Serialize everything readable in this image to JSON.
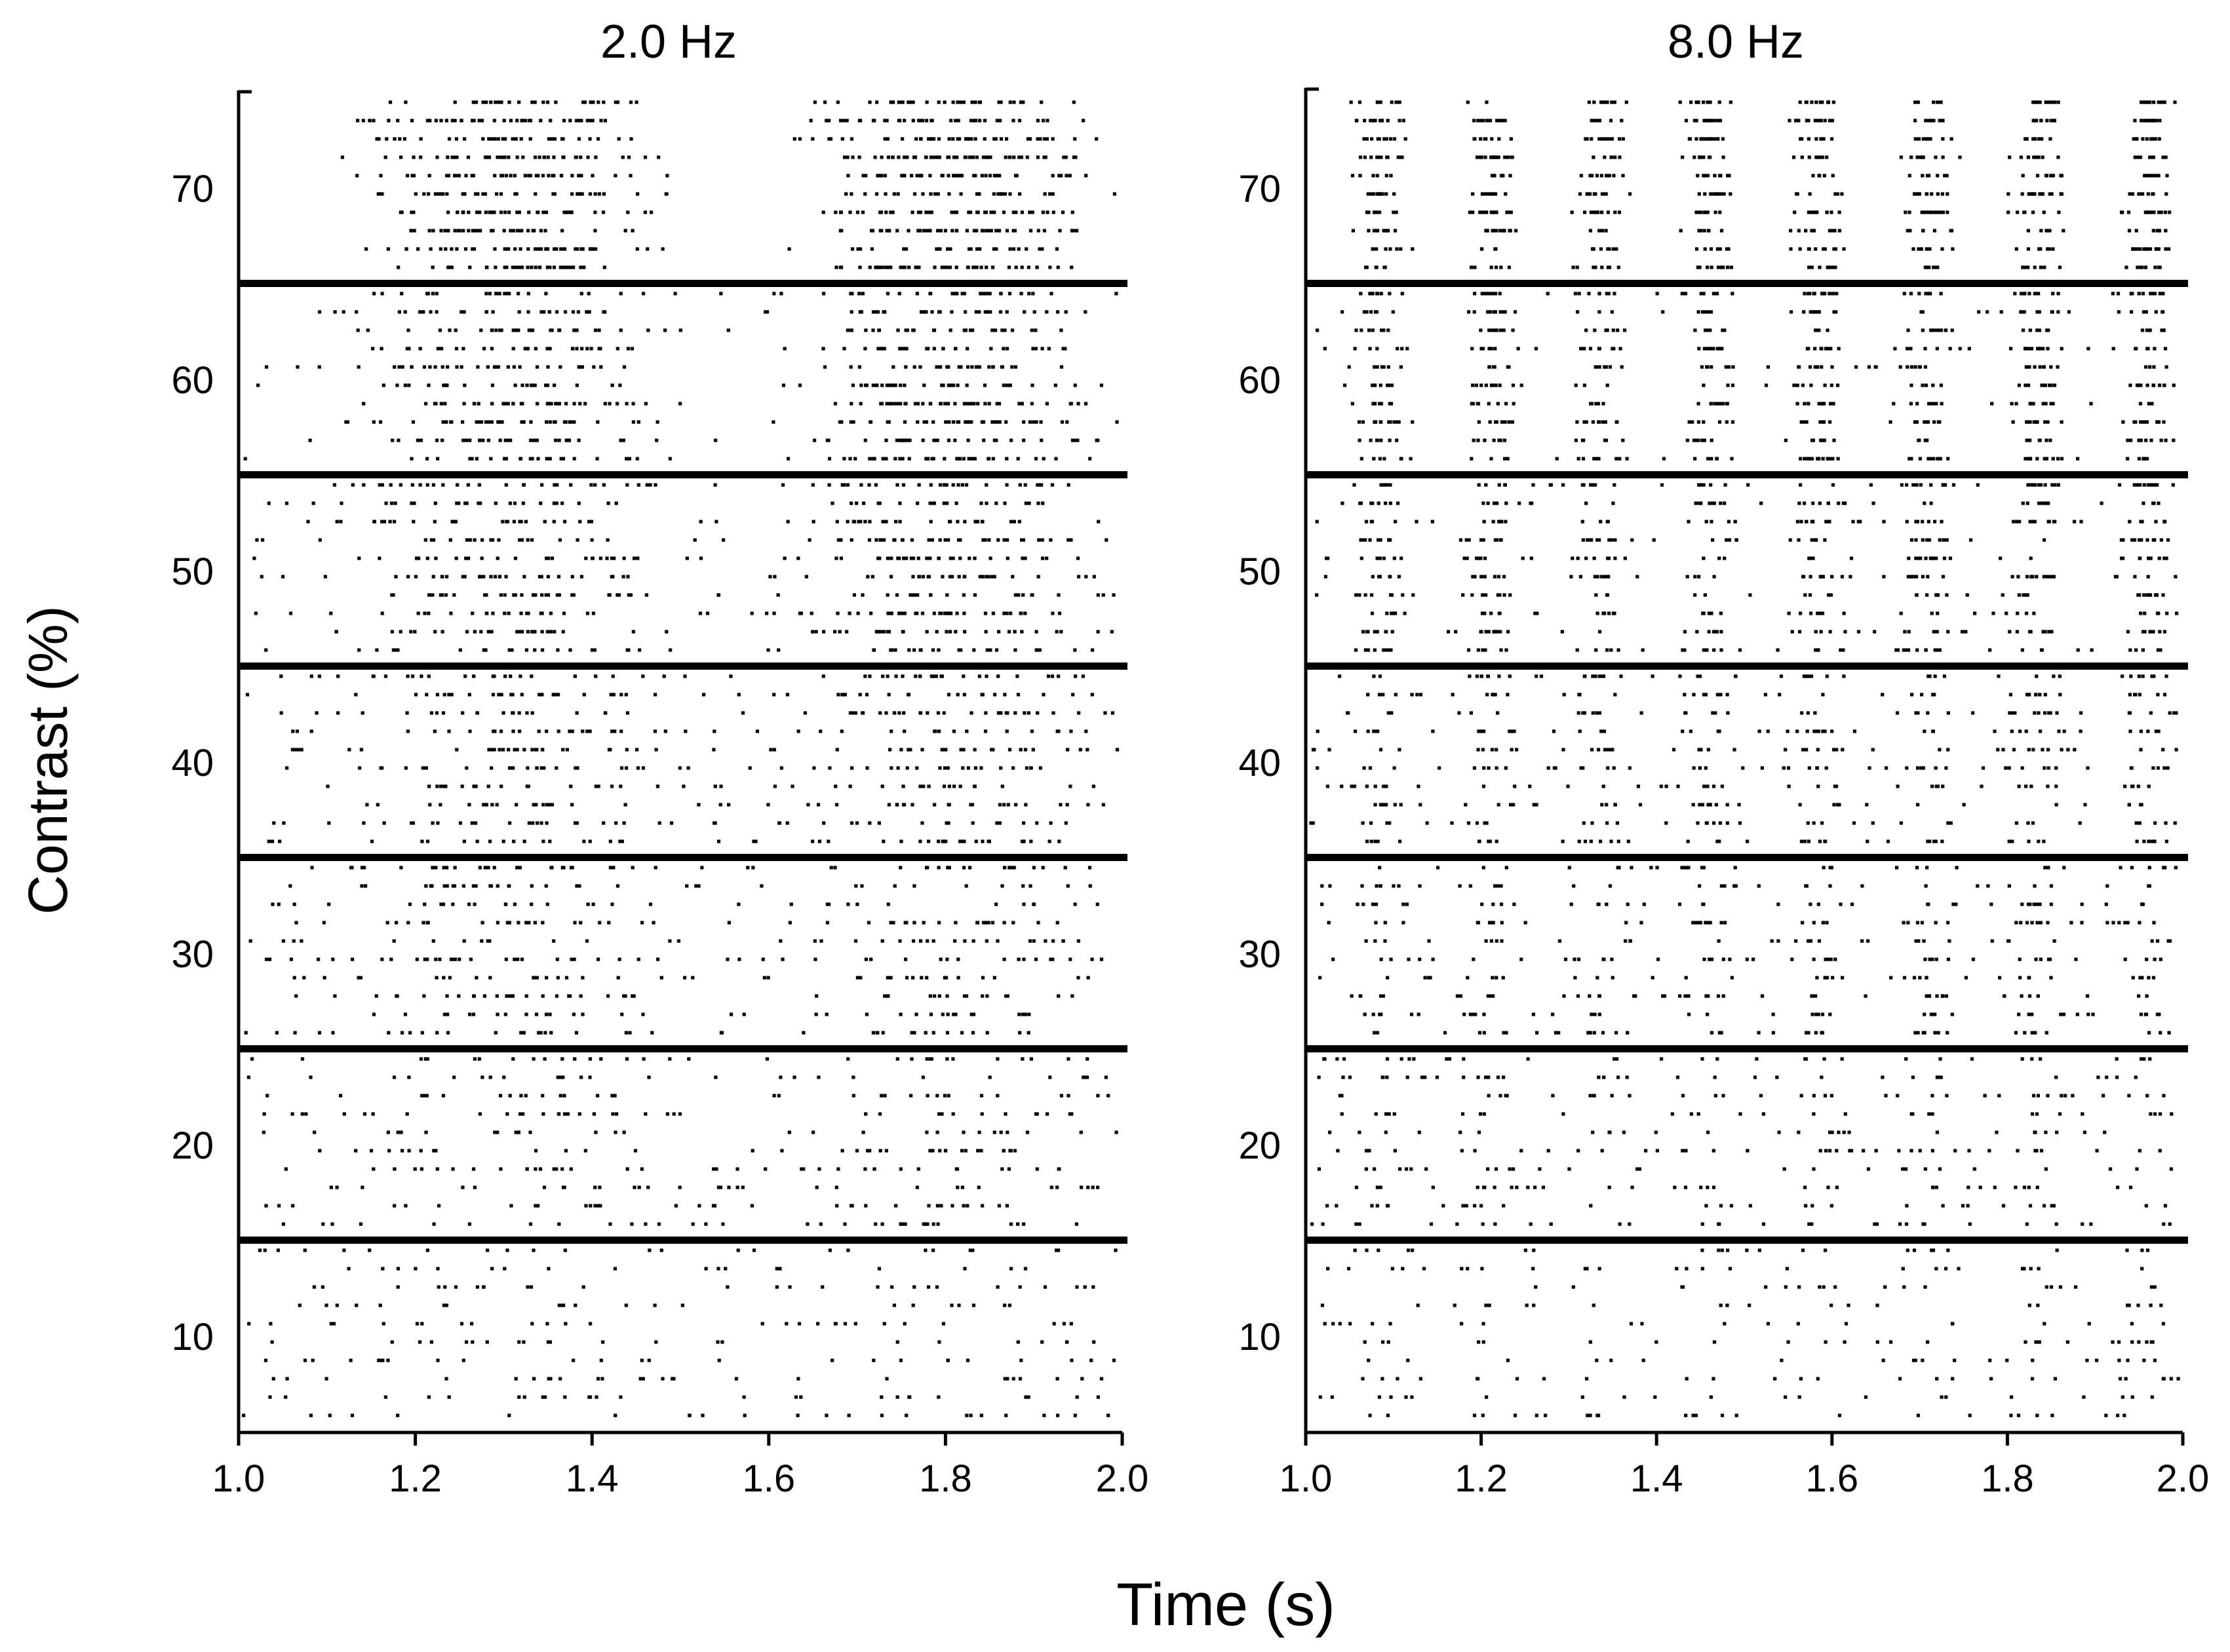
{
  "chart_data": {
    "type": "scatter",
    "subtype": "spike-raster",
    "ylabel": "Contrast (%)",
    "xlabel": "Time (s)",
    "colors": {
      "spikes": "#000000",
      "axes": "#000000",
      "background": "#ffffff"
    },
    "contrast_levels": [
      70,
      60,
      50,
      40,
      30,
      20,
      10
    ],
    "trials_per_condition": 10,
    "trial_window_s": [
      0.0,
      1.0
    ],
    "ylim": [
      5,
      75
    ],
    "x_ticks": [
      "1.0",
      "1.2",
      "1.4",
      "1.6",
      "1.8",
      "2.0"
    ],
    "y_ticks": [
      "70",
      "60",
      "50",
      "40",
      "30",
      "20",
      "10"
    ],
    "panels": [
      {
        "title": "2.0 Hz",
        "stimulus_frequency_hz": 2.0,
        "xlim": [
          1.0,
          2.0
        ],
        "cycles_shown": 2,
        "phase_offset_cycles": 0.11
      },
      {
        "title": "8.0 Hz",
        "stimulus_frequency_hz": 8.0,
        "xlim": [
          1.0,
          2.0
        ],
        "cycles_shown": 8,
        "phase_offset_cycles": 0.18
      }
    ]
  }
}
